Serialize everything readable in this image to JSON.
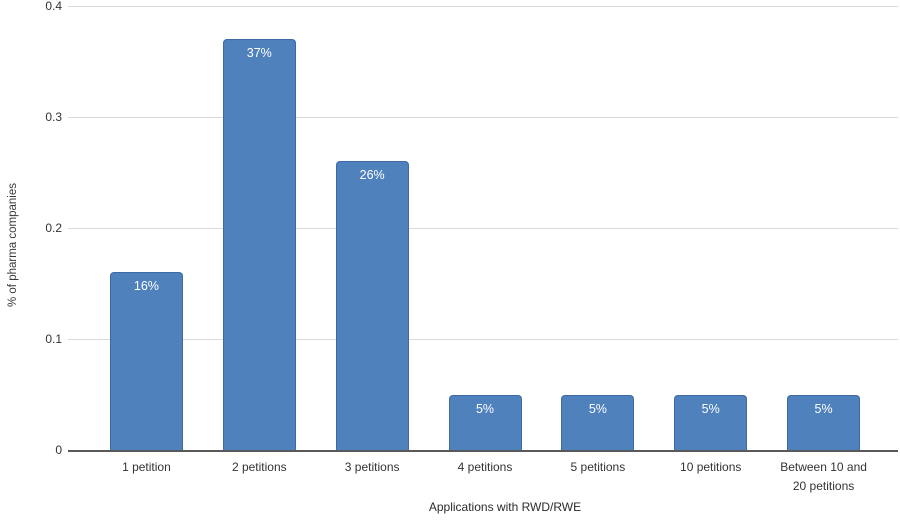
{
  "chart_data": {
    "type": "bar",
    "xlabel": "Applications with RWD/RWE",
    "ylabel": "% of pharma companies",
    "categories": [
      "1 petition",
      "2 petitions",
      "3 petitions",
      "4 petitions",
      "5 petitions",
      "10 petitions",
      "Between 10 and 20 petitions"
    ],
    "values": [
      0.16,
      0.37,
      0.26,
      0.05,
      0.05,
      0.05,
      0.05
    ],
    "bar_labels": [
      "16%",
      "37%",
      "26%",
      "5%",
      "5%",
      "5%",
      "5%"
    ],
    "ylim": [
      0,
      0.4
    ],
    "yticks": [
      0,
      0.1,
      0.2,
      0.3,
      0.4
    ],
    "ytick_labels": [
      "0",
      "0.1",
      "0.2",
      "0.3",
      "0.4"
    ],
    "grid": "horizontal",
    "legend": "none",
    "colors": {
      "bar_fill": "#4f81bd",
      "bar_border": "#3d6aa3",
      "gridline": "#d9d9d9",
      "axis_line": "#595959",
      "bar_label_text": "#ffffff",
      "tick_text": "#333333",
      "axis_title_text": "#2b2b2b"
    }
  }
}
